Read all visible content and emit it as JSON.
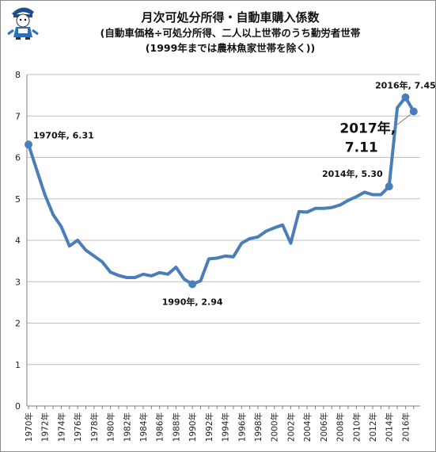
{
  "title": {
    "line1": "月次可処分所得・自動車購入係数",
    "line2": "(自動車価格÷可処分所得、二人以上世帯のうち勤労者世帯",
    "line3": "(1999年までは農林魚家世帯を除く))"
  },
  "colors": {
    "line": "#4a7ebb",
    "grid": "#bfbfbf",
    "axis": "#7f7f7f"
  },
  "chart_data": {
    "type": "line",
    "x": [
      1970,
      1971,
      1972,
      1973,
      1974,
      1975,
      1976,
      1977,
      1978,
      1979,
      1980,
      1981,
      1982,
      1983,
      1984,
      1985,
      1986,
      1987,
      1988,
      1989,
      1990,
      1991,
      1992,
      1993,
      1994,
      1995,
      1996,
      1997,
      1998,
      1999,
      2000,
      2001,
      2002,
      2003,
      2004,
      2005,
      2006,
      2007,
      2008,
      2009,
      2010,
      2011,
      2012,
      2013,
      2014,
      2015,
      2016,
      2017
    ],
    "series": [
      {
        "values": [
          6.31,
          5.7,
          5.1,
          4.62,
          4.33,
          3.86,
          4.0,
          3.76,
          3.62,
          3.48,
          3.23,
          3.15,
          3.1,
          3.1,
          3.18,
          3.14,
          3.22,
          3.18,
          3.35,
          3.06,
          2.94,
          3.02,
          3.55,
          3.57,
          3.62,
          3.6,
          3.93,
          4.04,
          4.08,
          4.22,
          4.3,
          4.37,
          3.93,
          4.69,
          4.68,
          4.77,
          4.77,
          4.79,
          4.85,
          4.96,
          5.05,
          5.16,
          5.1,
          5.1,
          5.3,
          7.2,
          7.45,
          7.11
        ]
      }
    ],
    "xtick_labels": [
      "1970年",
      "1972年",
      "1974年",
      "1976年",
      "1978年",
      "1980年",
      "1982年",
      "1984年",
      "1986年",
      "1988年",
      "1990年",
      "1992年",
      "1994年",
      "1996年",
      "1998年",
      "2000年",
      "2002年",
      "2004年",
      "2006年",
      "2008年",
      "2010年",
      "2012年",
      "2014年",
      "2016年"
    ],
    "ytick_labels": [
      "0",
      "1",
      "2",
      "3",
      "4",
      "5",
      "6",
      "7",
      "8"
    ],
    "ylim": [
      0,
      8
    ],
    "xlim": [
      1970,
      2017
    ],
    "grid": "horizontal",
    "legend": "none",
    "annotations": [
      {
        "year": 1970,
        "text": "1970年, 6.31",
        "style": "normal"
      },
      {
        "year": 1990,
        "text": "1990年, 2.94",
        "style": "normal"
      },
      {
        "year": 2014,
        "text": "2014年, 5.30",
        "style": "normal"
      },
      {
        "year": 2016,
        "text": "2016年, 7.45",
        "style": "normal"
      },
      {
        "year": 2017,
        "text": "2017年,",
        "text2": "7.11",
        "style": "large"
      }
    ]
  }
}
